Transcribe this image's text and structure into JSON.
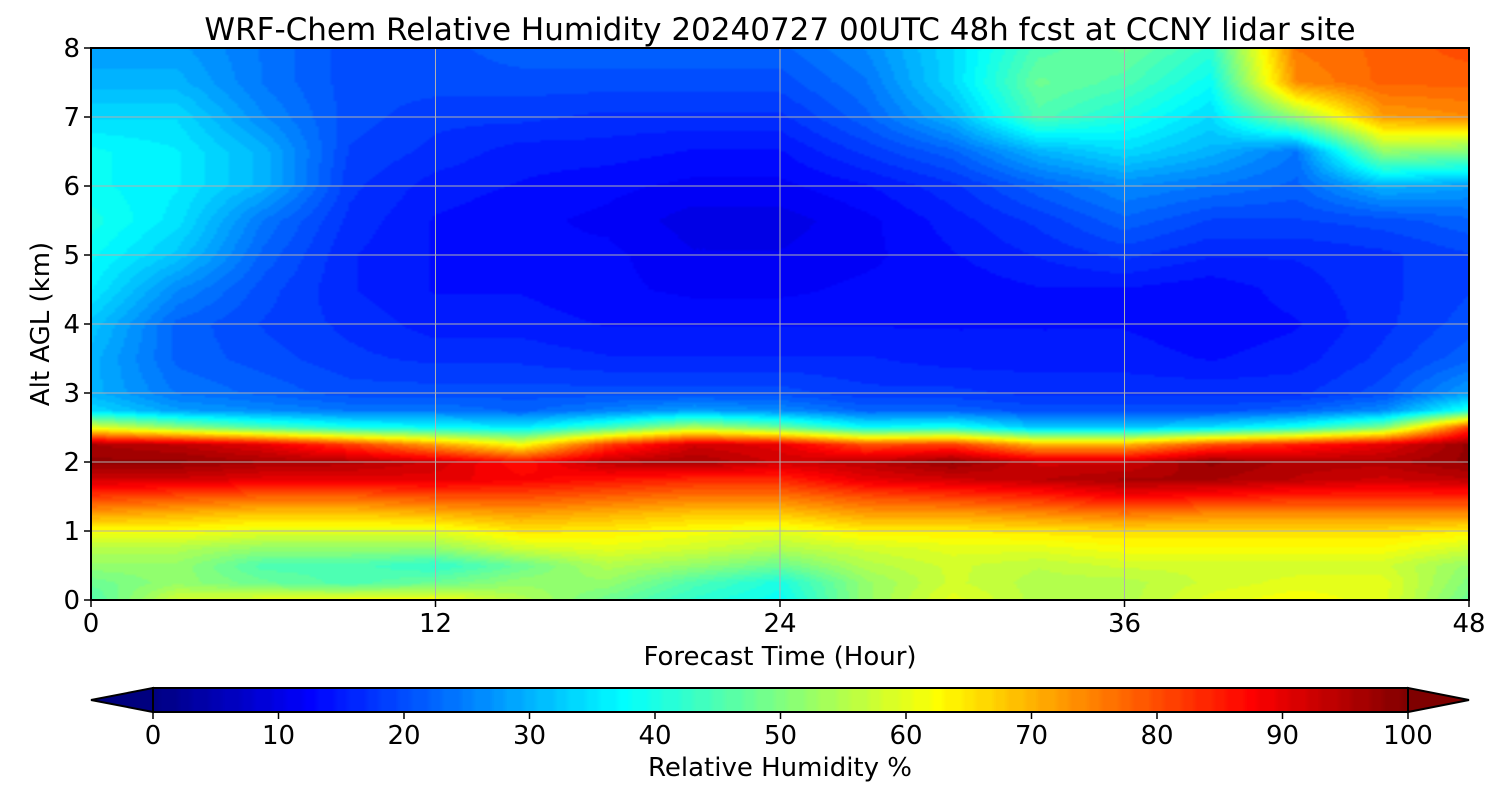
{
  "chart_data": {
    "type": "heatmap",
    "title": "WRF-Chem Relative Humidity 20240727 00UTC 48h fcst at CCNY lidar site",
    "xlabel": "Forecast Time (Hour)",
    "ylabel": "Alt AGL (km)",
    "xlim": [
      0,
      48
    ],
    "ylim": [
      0,
      8
    ],
    "x_ticks": [
      "0",
      "12",
      "24",
      "36",
      "48"
    ],
    "y_ticks": [
      "0",
      "1",
      "2",
      "3",
      "4",
      "5",
      "6",
      "7",
      "8"
    ],
    "grid": true,
    "colormap": "jet",
    "colorbar": {
      "label": "Relative Humidity %",
      "orientation": "horizontal",
      "placement": "bottom",
      "range": [
        0,
        100
      ],
      "extend": "both",
      "ticks": [
        "0",
        "10",
        "20",
        "30",
        "40",
        "50",
        "60",
        "70",
        "80",
        "90",
        "100"
      ]
    },
    "x": [
      0,
      3,
      6,
      9,
      12,
      15,
      18,
      21,
      24,
      27,
      30,
      33,
      36,
      39,
      42,
      45,
      48
    ],
    "y": [
      0,
      0.25,
      0.5,
      0.75,
      1,
      1.25,
      1.5,
      1.75,
      2,
      2.25,
      2.5,
      2.75,
      3,
      3.5,
      4,
      4.5,
      5,
      5.5,
      6,
      6.5,
      7,
      7.5,
      8
    ],
    "values": [
      [
        45,
        58,
        60,
        62,
        62,
        55,
        48,
        42,
        38,
        52,
        60,
        55,
        55,
        60,
        62,
        60,
        48
      ],
      [
        48,
        52,
        48,
        45,
        48,
        52,
        52,
        45,
        40,
        52,
        58,
        55,
        55,
        58,
        60,
        60,
        50
      ],
      [
        52,
        52,
        45,
        45,
        42,
        48,
        55,
        52,
        48,
        55,
        58,
        56,
        58,
        58,
        58,
        58,
        52
      ],
      [
        55,
        55,
        52,
        52,
        52,
        58,
        60,
        58,
        55,
        58,
        60,
        60,
        62,
        62,
        62,
        62,
        58
      ],
      [
        62,
        62,
        60,
        60,
        60,
        65,
        64,
        62,
        60,
        64,
        64,
        65,
        66,
        66,
        66,
        66,
        64
      ],
      [
        72,
        70,
        68,
        68,
        70,
        72,
        70,
        68,
        68,
        72,
        72,
        74,
        76,
        74,
        74,
        74,
        74
      ],
      [
        82,
        80,
        78,
        78,
        80,
        80,
        78,
        76,
        76,
        80,
        82,
        84,
        88,
        86,
        84,
        84,
        84
      ],
      [
        92,
        92,
        90,
        90,
        90,
        88,
        86,
        84,
        84,
        90,
        92,
        94,
        96,
        96,
        94,
        92,
        94
      ],
      [
        98,
        98,
        96,
        95,
        92,
        86,
        94,
        96,
        92,
        94,
        98,
        92,
        92,
        98,
        95,
        95,
        98
      ],
      [
        96,
        94,
        90,
        82,
        72,
        62,
        82,
        92,
        90,
        80,
        82,
        70,
        70,
        80,
        85,
        90,
        98
      ],
      [
        60,
        52,
        45,
        40,
        38,
        36,
        44,
        55,
        48,
        38,
        40,
        32,
        32,
        35,
        40,
        50,
        82
      ],
      [
        34,
        28,
        26,
        24,
        24,
        22,
        25,
        28,
        26,
        22,
        22,
        20,
        20,
        20,
        22,
        26,
        40
      ],
      [
        30,
        24,
        22,
        20,
        20,
        20,
        20,
        20,
        20,
        18,
        18,
        17,
        17,
        17,
        17,
        20,
        28
      ],
      [
        30,
        22,
        20,
        18,
        17,
        17,
        16,
        16,
        16,
        16,
        15,
        15,
        15,
        14,
        15,
        18,
        22
      ],
      [
        32,
        22,
        19,
        17,
        15,
        15,
        14,
        14,
        14,
        14,
        14,
        14,
        14,
        13,
        14,
        17,
        20
      ],
      [
        36,
        26,
        20,
        16,
        14,
        14,
        13,
        12,
        12,
        13,
        13,
        14,
        14,
        13,
        15,
        17,
        19
      ],
      [
        38,
        32,
        22,
        16,
        14,
        13,
        13,
        11,
        11,
        12,
        14,
        16,
        18,
        16,
        16,
        17,
        19
      ],
      [
        40,
        35,
        24,
        17,
        14,
        13,
        12,
        10,
        10,
        12,
        15,
        18,
        22,
        19,
        19,
        20,
        22
      ],
      [
        38,
        36,
        30,
        18,
        15,
        14,
        13,
        12,
        12,
        14,
        17,
        22,
        26,
        24,
        22,
        30,
        28
      ],
      [
        38,
        36,
        30,
        19,
        17,
        15,
        15,
        14,
        14,
        18,
        22,
        30,
        34,
        30,
        24,
        52,
        50
      ],
      [
        34,
        34,
        26,
        20,
        18,
        18,
        17,
        17,
        17,
        22,
        30,
        45,
        40,
        34,
        52,
        72,
        74
      ],
      [
        30,
        30,
        24,
        20,
        20,
        20,
        20,
        20,
        20,
        24,
        34,
        48,
        45,
        38,
        74,
        78,
        78
      ],
      [
        28,
        28,
        24,
        20,
        20,
        22,
        22,
        22,
        22,
        26,
        34,
        45,
        48,
        42,
        76,
        78,
        80
      ]
    ]
  }
}
